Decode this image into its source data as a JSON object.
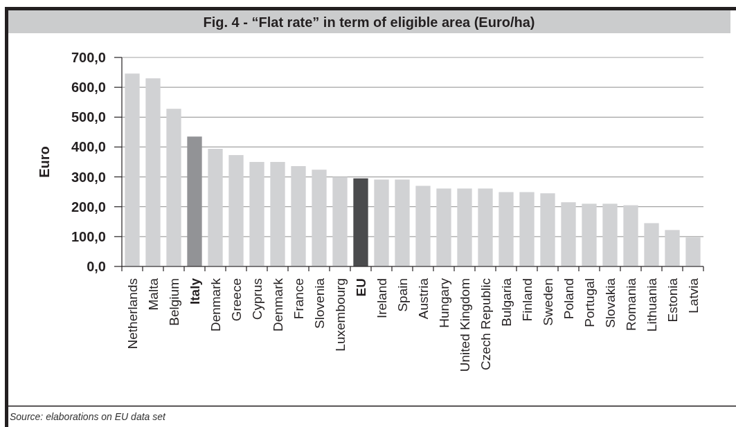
{
  "chart_data": {
    "type": "bar",
    "title": "Fig. 4 - “Flat rate” in term of eligible area (Euro/ha)",
    "ylabel": "Euro",
    "categories": [
      "Netherlands",
      "Malta",
      "Belgium",
      "Italy",
      "Denmark",
      "Greece",
      "Cyprus",
      "Denmark",
      "France",
      "Slovenia",
      "Luxembourg",
      "EU",
      "Ireland",
      "Spain",
      "Austria",
      "Hungary",
      "United Kingdom",
      "Czech Republic",
      "Bulgaria",
      "Finland",
      "Sweden",
      "Poland",
      "Portugal",
      "Slovakia",
      "Romania",
      "Lithuania",
      "Estonia",
      "Latvia"
    ],
    "values": [
      646,
      630,
      528,
      435,
      394,
      373,
      350,
      350,
      336,
      324,
      300,
      295,
      291,
      291,
      270,
      261,
      261,
      261,
      249,
      249,
      245,
      215,
      210,
      210,
      205,
      145,
      122,
      97
    ],
    "colors": [
      "#d1d2d4",
      "#d1d2d4",
      "#d1d2d4",
      "#929396",
      "#d1d2d4",
      "#d1d2d4",
      "#d1d2d4",
      "#d1d2d4",
      "#d1d2d4",
      "#d1d2d4",
      "#d1d2d4",
      "#4a4b4d",
      "#d1d2d4",
      "#d1d2d4",
      "#d1d2d4",
      "#d1d2d4",
      "#d1d2d4",
      "#d1d2d4",
      "#d1d2d4",
      "#d1d2d4",
      "#d1d2d4",
      "#d1d2d4",
      "#d1d2d4",
      "#d1d2d4",
      "#d1d2d4",
      "#d1d2d4",
      "#d1d2d4",
      "#d1d2d4"
    ],
    "ylim": [
      0,
      700
    ],
    "yticks": [
      {
        "value": 0,
        "label": "0,0"
      },
      {
        "value": 100,
        "label": "100,0"
      },
      {
        "value": 200,
        "label": "200,0"
      },
      {
        "value": 300,
        "label": "300,0"
      },
      {
        "value": 400,
        "label": "400,0"
      },
      {
        "value": 500,
        "label": "500,0"
      },
      {
        "value": 600,
        "label": "600,0"
      },
      {
        "value": 700,
        "label": "700,0"
      }
    ],
    "grid": "y",
    "annotations": [
      "Source: elaborations on EU data set"
    ]
  }
}
